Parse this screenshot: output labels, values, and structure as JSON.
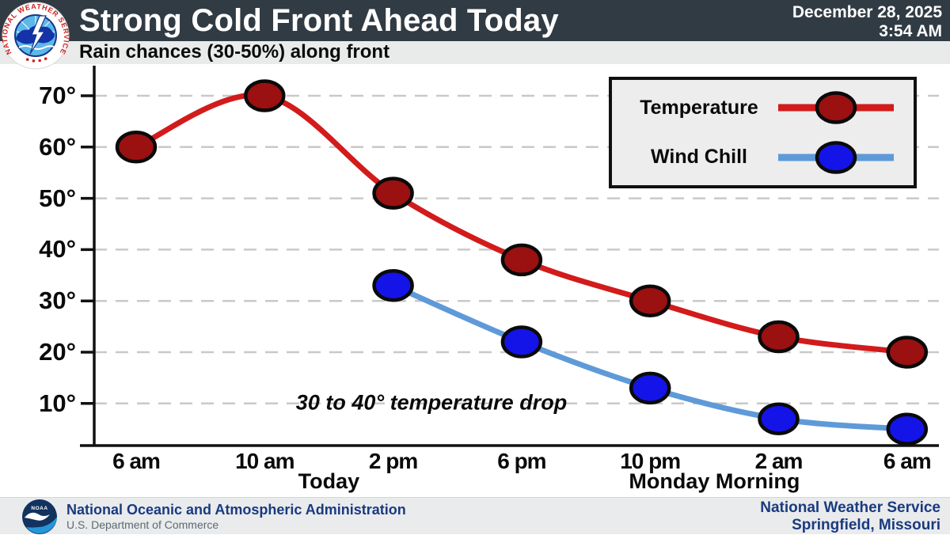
{
  "header": {
    "title": "Strong Cold Front Ahead Today",
    "subtitle": "Rain chances (30-50%) along front",
    "date": "December 28, 2025",
    "time": "3:54 AM",
    "nws_logo_text": "NATIONAL WEATHER SERVICE"
  },
  "chart_data": {
    "type": "line",
    "x": [
      "6 am",
      "10 am",
      "2 pm",
      "6 pm",
      "10 pm",
      "2 am",
      "6 am"
    ],
    "x_group_labels": [
      {
        "label": "Today",
        "center_between": [
          1,
          2
        ]
      },
      {
        "label": "Monday Morning",
        "center_between": [
          4,
          5
        ]
      }
    ],
    "series": [
      {
        "name": "Temperature",
        "values": [
          60,
          70,
          51,
          38,
          30,
          23,
          20
        ],
        "line_color": "#d21b1b",
        "marker_color": "#9b1010"
      },
      {
        "name": "Wind Chill",
        "values": [
          null,
          null,
          33,
          22,
          13,
          7,
          5
        ],
        "line_color": "#5f9ad8",
        "marker_color": "#1414e8"
      }
    ],
    "y_ticks": [
      {
        "label": "70°",
        "value": 70
      },
      {
        "label": "60°",
        "value": 60
      },
      {
        "label": "50°",
        "value": 50
      },
      {
        "label": "40°",
        "value": 40
      },
      {
        "label": "30°",
        "value": 30
      },
      {
        "label": "20°",
        "value": 20
      },
      {
        "label": "10°",
        "value": 10
      }
    ],
    "ylim": [
      0,
      75
    ],
    "grid": "horizontal-dashed",
    "legend_position": "top-right",
    "annotation": "30 to 40° temperature drop"
  },
  "footer": {
    "left_title": "National Oceanic and Atmospheric Administration",
    "left_subtitle": "U.S. Department of Commerce",
    "right_line1": "National Weather Service",
    "right_line2": "Springfield, Missouri",
    "noaa_logo_text": "NOAA"
  },
  "colors": {
    "header_bg": "#313b44",
    "subtitle_strip_bg": "#e9ebeb",
    "footer_bg": "#e9ebec",
    "temperature_line": "#d21b1b",
    "temperature_marker": "#9b1010",
    "wind_chill_line": "#5f9ad8",
    "wind_chill_marker": "#1414e8",
    "navy_text": "#1a3a80",
    "nws_logo_red": "#cc2222"
  }
}
